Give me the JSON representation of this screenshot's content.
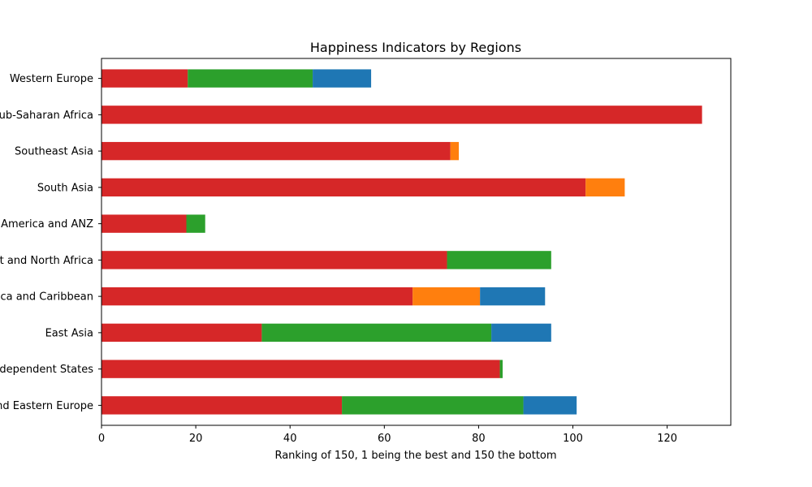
{
  "chart_data": {
    "type": "bar",
    "orientation": "horizontal",
    "stacked": true,
    "title": "Happiness Indicators by Regions",
    "xlabel": "Ranking of 150, 1 being the best and 150 the bottom",
    "ylabel": "",
    "xlim": [
      0,
      133.5
    ],
    "xticks": [
      0,
      20,
      40,
      60,
      80,
      100,
      120
    ],
    "grid": false,
    "legend": "none",
    "categories": [
      "Central and Eastern Europe",
      "Commonwealth of Independent States",
      "East Asia",
      "Latin America and Caribbean",
      "Middle East and North Africa",
      "North America and ANZ",
      "South Asia",
      "Southeast Asia",
      "Sub-Saharan Africa",
      "Western Europe"
    ],
    "series": [
      {
        "name": "red segment",
        "color": "#d62728",
        "values": [
          51.0,
          84.5,
          34.0,
          66.0,
          73.3,
          18.0,
          102.7,
          74.0,
          127.4,
          18.3
        ]
      },
      {
        "name": "green segment",
        "color": "#2ca02c",
        "values": [
          38.5,
          0.6,
          48.7,
          0,
          22.1,
          4.0,
          0,
          0,
          0,
          26.5
        ]
      },
      {
        "name": "orange segment",
        "color": "#ff7f0e",
        "values": [
          0,
          0,
          0,
          14.3,
          0,
          0,
          8.3,
          1.8,
          0,
          0
        ]
      },
      {
        "name": "blue segment",
        "color": "#1f77b4",
        "values": [
          11.3,
          0,
          12.7,
          13.8,
          0,
          0,
          0,
          0,
          0,
          12.4
        ]
      }
    ],
    "stack_order": [
      "red segment",
      "green segment",
      "orange segment",
      "blue segment"
    ]
  }
}
